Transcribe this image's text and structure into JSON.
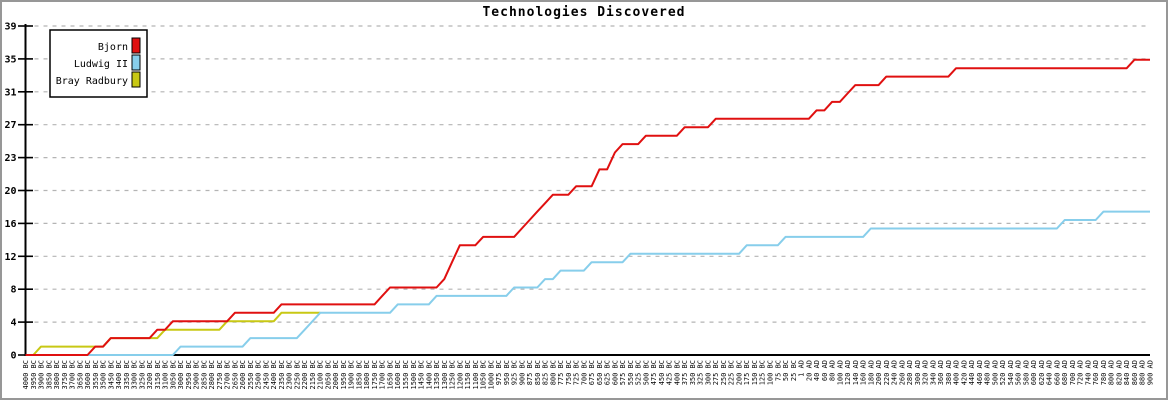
{
  "chart_data": {
    "type": "line",
    "title": "Technologies Discovered",
    "xlabel": "",
    "ylabel": "",
    "ylim": [
      0,
      39
    ],
    "grid": "horizontal-dashed",
    "legend_position": "top-left",
    "gridline_color": "#b4b4b4",
    "axis_color": "#000000",
    "y_ticks": [
      {
        "label": "0",
        "value": 0
      },
      {
        "label": "4",
        "value": 3.9
      },
      {
        "label": "8",
        "value": 7.8
      },
      {
        "label": "12",
        "value": 11.7
      },
      {
        "label": "16",
        "value": 15.6
      },
      {
        "label": "20",
        "value": 19.5
      },
      {
        "label": "23",
        "value": 23.4
      },
      {
        "label": "27",
        "value": 27.3
      },
      {
        "label": "31",
        "value": 31.2
      },
      {
        "label": "35",
        "value": 35.1
      },
      {
        "label": "39",
        "value": 39
      }
    ],
    "x_labels": [
      "4000 BC",
      "3950 BC",
      "3900 BC",
      "3850 BC",
      "3800 BC",
      "3750 BC",
      "3700 BC",
      "3650 BC",
      "3600 BC",
      "3550 BC",
      "3500 BC",
      "3450 BC",
      "3400 BC",
      "3350 BC",
      "3300 BC",
      "3250 BC",
      "3200 BC",
      "3150 BC",
      "3100 BC",
      "3050 BC",
      "3000 BC",
      "2950 BC",
      "2900 BC",
      "2850 BC",
      "2800 BC",
      "2750 BC",
      "2700 BC",
      "2650 BC",
      "2600 BC",
      "2550 BC",
      "2500 BC",
      "2450 BC",
      "2400 BC",
      "2350 BC",
      "2300 BC",
      "2250 BC",
      "2200 BC",
      "2150 BC",
      "2100 BC",
      "2050 BC",
      "2000 BC",
      "1950 BC",
      "1900 BC",
      "1850 BC",
      "1800 BC",
      "1750 BC",
      "1700 BC",
      "1650 BC",
      "1600 BC",
      "1550 BC",
      "1500 BC",
      "1450 BC",
      "1400 BC",
      "1350 BC",
      "1300 BC",
      "1250 BC",
      "1200 BC",
      "1150 BC",
      "1100 BC",
      "1050 BC",
      "1000 BC",
      "975 BC",
      "950 BC",
      "925 BC",
      "900 BC",
      "875 BC",
      "850 BC",
      "825 BC",
      "800 BC",
      "775 BC",
      "750 BC",
      "725 BC",
      "700 BC",
      "675 BC",
      "650 BC",
      "625 BC",
      "600 BC",
      "575 BC",
      "550 BC",
      "525 BC",
      "500 BC",
      "475 BC",
      "450 BC",
      "425 BC",
      "400 BC",
      "375 BC",
      "350 BC",
      "325 BC",
      "300 BC",
      "275 BC",
      "250 BC",
      "225 BC",
      "200 BC",
      "175 BC",
      "150 BC",
      "125 BC",
      "100 BC",
      "75 BC",
      "50 BC",
      "25 BC",
      "1 AD",
      "20 AD",
      "40 AD",
      "60 AD",
      "80 AD",
      "100 AD",
      "120 AD",
      "140 AD",
      "160 AD",
      "180 AD",
      "200 AD",
      "220 AD",
      "240 AD",
      "260 AD",
      "280 AD",
      "300 AD",
      "320 AD",
      "340 AD",
      "360 AD",
      "380 AD",
      "400 AD",
      "420 AD",
      "440 AD",
      "460 AD",
      "480 AD",
      "500 AD",
      "520 AD",
      "540 AD",
      "560 AD",
      "580 AD",
      "600 AD",
      "620 AD",
      "640 AD",
      "660 AD",
      "680 AD",
      "700 AD",
      "720 AD",
      "740 AD",
      "760 AD",
      "780 AD",
      "800 AD",
      "820 AD",
      "840 AD",
      "860 AD",
      "880 AD",
      "900 AD"
    ],
    "series": [
      {
        "name": "Bjorn",
        "color": "#e01010",
        "values": [
          0,
          0,
          0,
          0,
          0,
          0,
          0,
          0,
          0,
          1,
          1,
          2,
          2,
          2,
          2,
          2,
          2,
          3,
          3,
          4,
          4,
          4,
          4,
          4,
          4,
          4,
          4,
          5,
          5,
          5,
          5,
          5,
          5,
          6,
          6,
          6,
          6,
          6,
          6,
          6,
          6,
          6,
          6,
          6,
          6,
          6,
          7,
          8,
          8,
          8,
          8,
          8,
          8,
          8,
          9,
          11,
          13,
          13,
          13,
          14,
          14,
          14,
          14,
          14,
          15,
          16,
          17,
          18,
          19,
          19,
          19,
          20,
          20,
          20,
          22,
          22,
          24,
          25,
          25,
          25,
          26,
          26,
          26,
          26,
          26,
          27,
          27,
          27,
          27,
          28,
          28,
          28,
          28,
          28,
          28,
          28,
          28,
          28,
          28,
          28,
          28,
          28,
          29,
          29,
          30,
          30,
          31,
          32,
          32,
          32,
          32,
          33,
          33,
          33,
          33,
          33,
          33,
          33,
          33,
          33,
          34,
          34,
          34,
          34,
          34,
          34,
          34,
          34,
          34,
          34,
          34,
          34,
          34,
          34,
          34,
          34,
          34,
          34,
          34,
          34,
          34,
          34,
          34,
          35,
          35,
          35
        ]
      },
      {
        "name": "Ludwig II",
        "color": "#87ceeb",
        "values": [
          0,
          0,
          0,
          0,
          0,
          0,
          0,
          0,
          0,
          0,
          0,
          0,
          0,
          0,
          0,
          0,
          0,
          0,
          0,
          0,
          1,
          1,
          1,
          1,
          1,
          1,
          1,
          1,
          1,
          2,
          2,
          2,
          2,
          2,
          2,
          2,
          3,
          4,
          5,
          5,
          5,
          5,
          5,
          5,
          5,
          5,
          5,
          5,
          6,
          6,
          6,
          6,
          6,
          7,
          7,
          7,
          7,
          7,
          7,
          7,
          7,
          7,
          7,
          8,
          8,
          8,
          8,
          9,
          9,
          10,
          10,
          10,
          10,
          11,
          11,
          11,
          11,
          11,
          12,
          12,
          12,
          12,
          12,
          12,
          12,
          12,
          12,
          12,
          12,
          12,
          12,
          12,
          12,
          13,
          13,
          13,
          13,
          13,
          14,
          14,
          14,
          14,
          14,
          14,
          14,
          14,
          14,
          14,
          14,
          15,
          15,
          15,
          15,
          15,
          15,
          15,
          15,
          15,
          15,
          15,
          15,
          15,
          15,
          15,
          15,
          15,
          15,
          15,
          15,
          15,
          15,
          15,
          15,
          15,
          16,
          16,
          16,
          16,
          16,
          17,
          17,
          17,
          17,
          17,
          17,
          17
        ]
      },
      {
        "name": "Bray Radbury",
        "color": "#c8c814",
        "values": [
          0,
          0,
          1,
          1,
          1,
          1,
          1,
          1,
          1,
          1,
          1,
          2,
          2,
          2,
          2,
          2,
          2,
          2,
          3,
          3,
          3,
          3,
          3,
          3,
          3,
          3,
          4,
          4,
          4,
          4,
          4,
          4,
          4,
          5,
          5,
          5,
          5,
          5,
          5,
          null,
          null,
          null,
          null,
          null,
          null,
          null,
          null,
          null,
          null,
          null,
          null,
          null,
          null,
          null,
          null,
          null,
          null,
          null,
          null,
          null,
          null,
          null,
          null,
          null,
          null,
          null,
          null,
          null,
          null,
          null,
          null,
          null,
          null,
          null,
          null,
          null,
          null,
          null,
          null,
          null,
          null,
          null,
          null,
          null,
          null,
          null,
          null,
          null,
          null,
          null,
          null,
          null,
          null,
          null,
          null,
          null,
          null,
          null,
          null,
          null,
          null,
          null,
          null,
          null,
          null,
          null,
          null,
          null,
          null,
          null,
          null,
          null,
          null,
          null,
          null,
          null,
          null,
          null,
          null,
          null,
          null,
          null,
          null,
          null,
          null,
          null,
          null,
          null,
          null,
          null,
          null,
          null,
          null,
          null,
          null,
          null,
          null,
          null,
          null,
          null,
          null,
          null,
          null,
          null,
          null,
          null
        ]
      }
    ]
  }
}
